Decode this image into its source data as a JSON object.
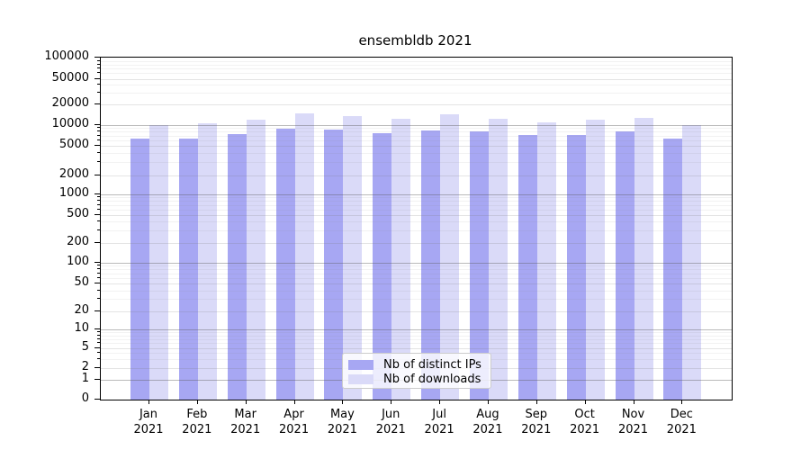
{
  "chart_data": {
    "type": "bar",
    "title": "ensembldb 2021",
    "categories": [
      "Jan",
      "Feb",
      "Mar",
      "Apr",
      "May",
      "Jun",
      "Jul",
      "Aug",
      "Sep",
      "Oct",
      "Nov",
      "Dec"
    ],
    "year_suffix": "2021",
    "series": [
      {
        "name": "Nb of distinct IPs",
        "color": "#a7a7f3",
        "values": [
          6300,
          6300,
          7500,
          8900,
          8500,
          7600,
          8300,
          8000,
          7200,
          7200,
          8200,
          6400
        ]
      },
      {
        "name": "Nb of downloads",
        "color": "#dadaf8",
        "values": [
          10100,
          10500,
          12000,
          14800,
          13600,
          12300,
          14400,
          12500,
          11000,
          11900,
          12900,
          10100
        ]
      }
    ],
    "y_axis": {
      "scale": "symlog",
      "ticks": [
        100000,
        50000,
        20000,
        10000,
        5000,
        2000,
        1000,
        500,
        200,
        100,
        50,
        20,
        10,
        5,
        2,
        1,
        0
      ],
      "ylim": [
        0,
        100000
      ]
    },
    "xlabel": "",
    "ylabel": "",
    "grid": "horizontal",
    "legend_position": "lower center"
  }
}
